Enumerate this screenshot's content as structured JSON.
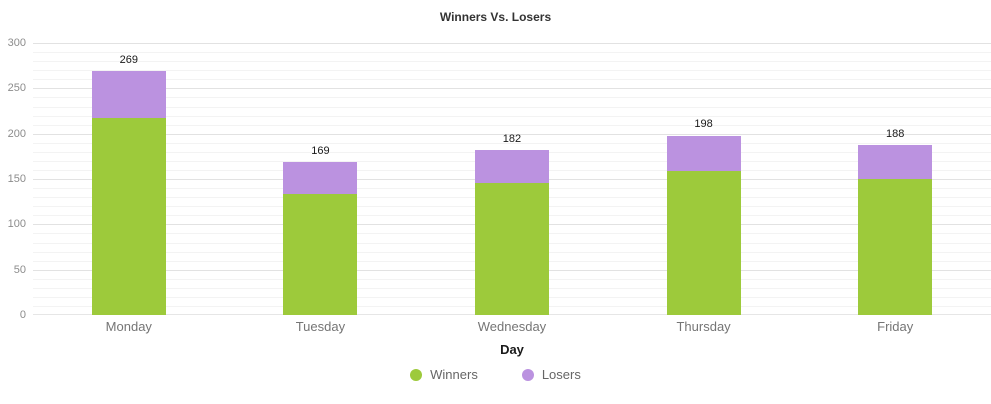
{
  "chart_data": {
    "type": "bar",
    "stacked": true,
    "title": "Winners Vs. Losers",
    "xlabel": "Day",
    "ylabel": "",
    "categories": [
      "Monday",
      "Tuesday",
      "Wednesday",
      "Thursday",
      "Friday"
    ],
    "series": [
      {
        "name": "Winners",
        "color": "#9dca3b",
        "values": [
          217,
          134,
          146,
          159,
          150
        ]
      },
      {
        "name": "Losers",
        "color": "#bb92e0",
        "values": [
          52,
          35,
          36,
          39,
          38
        ]
      }
    ],
    "totals": [
      269,
      169,
      182,
      198,
      188
    ],
    "ylim": [
      0,
      300
    ],
    "y_tick_interval": 50,
    "y_minor_tick_interval": 10,
    "y_tick_labels": [
      "0",
      "50",
      "100",
      "150",
      "200",
      "250",
      "300"
    ],
    "grid": true,
    "legend": {
      "position": "bottom",
      "items": [
        {
          "label": "Winners",
          "color": "#9dca3b"
        },
        {
          "label": "Losers",
          "color": "#bb92e0"
        }
      ]
    },
    "colors": {
      "major_gridline": "#e2e2e2",
      "minor_gridline": "#f3f3f3",
      "title_text": "#333333",
      "tick_text": "#8c8c8c",
      "category_text": "#757575",
      "value_label_text": "#1a1a1a",
      "legend_text": "#666666",
      "background": "#ffffff"
    }
  }
}
